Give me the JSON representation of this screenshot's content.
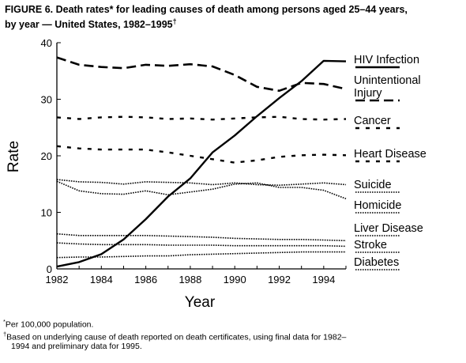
{
  "title": {
    "line1": "FIGURE 6. Death rates* for leading causes of death among persons aged 25–44 years,",
    "line2": "by year — United States, 1982–1995",
    "dagger": "†"
  },
  "footnotes": {
    "note1_mark": "*",
    "note1": "Per 100,000 population.",
    "note2_mark": "†",
    "note2_line1": "Based on underlying cause of death reported on death certificates, using final data for 1982–",
    "note2_line2": "1994 and preliminary data for 1995."
  },
  "chart_data": {
    "type": "line",
    "title": "",
    "xlabel": "Year",
    "ylabel": "Rate",
    "xlim": [
      1982,
      1995
    ],
    "ylim": [
      0,
      40
    ],
    "x_ticks": [
      1982,
      1984,
      1986,
      1988,
      1990,
      1992,
      1994
    ],
    "y_ticks": [
      0,
      10,
      20,
      30,
      40
    ],
    "x_tick_labels": [
      "1982",
      "1984",
      "1986",
      "1988",
      "1990",
      "1992",
      "1994"
    ],
    "y_tick_labels": [
      "0",
      "10",
      "20",
      "30",
      "40"
    ],
    "grid": false,
    "legend": "direct labels at right",
    "x": [
      1982,
      1983,
      1984,
      1985,
      1986,
      1987,
      1988,
      1989,
      1990,
      1991,
      1992,
      1993,
      1994,
      1995
    ],
    "series": [
      {
        "name": "HIV Infection",
        "style": "solid",
        "values": [
          0.4,
          1.2,
          2.6,
          5.2,
          8.8,
          12.8,
          16.0,
          20.6,
          23.6,
          27.0,
          30.2,
          33.2,
          36.8,
          36.7
        ]
      },
      {
        "name": "Unintentional Injury",
        "style": "long-dash",
        "values": [
          37.4,
          36.1,
          35.7,
          35.5,
          36.1,
          35.9,
          36.2,
          35.8,
          34.3,
          32.2,
          31.5,
          32.9,
          32.7,
          31.8
        ]
      },
      {
        "name": "Cancer",
        "style": "short-dash",
        "values": [
          26.8,
          26.5,
          26.8,
          26.9,
          26.8,
          26.5,
          26.6,
          26.4,
          26.6,
          26.8,
          26.9,
          26.5,
          26.4,
          26.5
        ]
      },
      {
        "name": "Heart Disease",
        "style": "short-dash",
        "values": [
          21.7,
          21.3,
          21.1,
          21.1,
          21.1,
          20.6,
          20.0,
          19.4,
          18.8,
          19.2,
          19.8,
          20.1,
          20.2,
          20.1
        ]
      },
      {
        "name": "Suicide",
        "style": "dotted",
        "values": [
          15.8,
          15.4,
          15.3,
          15.0,
          15.4,
          15.3,
          15.2,
          14.9,
          15.2,
          14.9,
          14.8,
          15.0,
          15.2,
          14.9
        ]
      },
      {
        "name": "Homicide",
        "style": "dotted",
        "values": [
          15.5,
          13.8,
          13.3,
          13.2,
          13.8,
          13.1,
          13.6,
          14.1,
          15.0,
          15.2,
          14.4,
          14.4,
          13.9,
          12.4
        ]
      },
      {
        "name": "Liver Disease",
        "style": "dotted",
        "values": [
          6.2,
          5.9,
          5.9,
          5.9,
          5.9,
          5.8,
          5.7,
          5.6,
          5.4,
          5.3,
          5.2,
          5.2,
          5.1,
          5.0
        ]
      },
      {
        "name": "Stroke",
        "style": "dotted",
        "values": [
          4.6,
          4.4,
          4.3,
          4.3,
          4.3,
          4.2,
          4.2,
          4.2,
          4.1,
          4.1,
          4.1,
          4.1,
          4.1,
          4.0
        ]
      },
      {
        "name": "Diabetes",
        "style": "dotted",
        "values": [
          2.0,
          2.1,
          2.1,
          2.2,
          2.3,
          2.3,
          2.5,
          2.6,
          2.7,
          2.8,
          2.9,
          3.0,
          3.0,
          3.0
        ]
      }
    ],
    "legend_labels": [
      {
        "lines": [
          "HIV Infection"
        ],
        "style": "solid"
      },
      {
        "lines": [
          "Unintentional",
          "Injury"
        ],
        "style": "long-dash"
      },
      {
        "lines": [
          "Cancer"
        ],
        "style": "short-dash"
      },
      {
        "lines": [
          "Heart Disease"
        ],
        "style": "short-dash"
      },
      {
        "lines": [
          "Suicide"
        ],
        "style": "dotted"
      },
      {
        "lines": [
          "Homicide"
        ],
        "style": "dotted"
      },
      {
        "lines": [
          "Liver Disease"
        ],
        "style": "dotted"
      },
      {
        "lines": [
          "Stroke"
        ],
        "style": "dotted"
      },
      {
        "lines": [
          "Diabetes"
        ],
        "style": "dotted"
      }
    ]
  }
}
